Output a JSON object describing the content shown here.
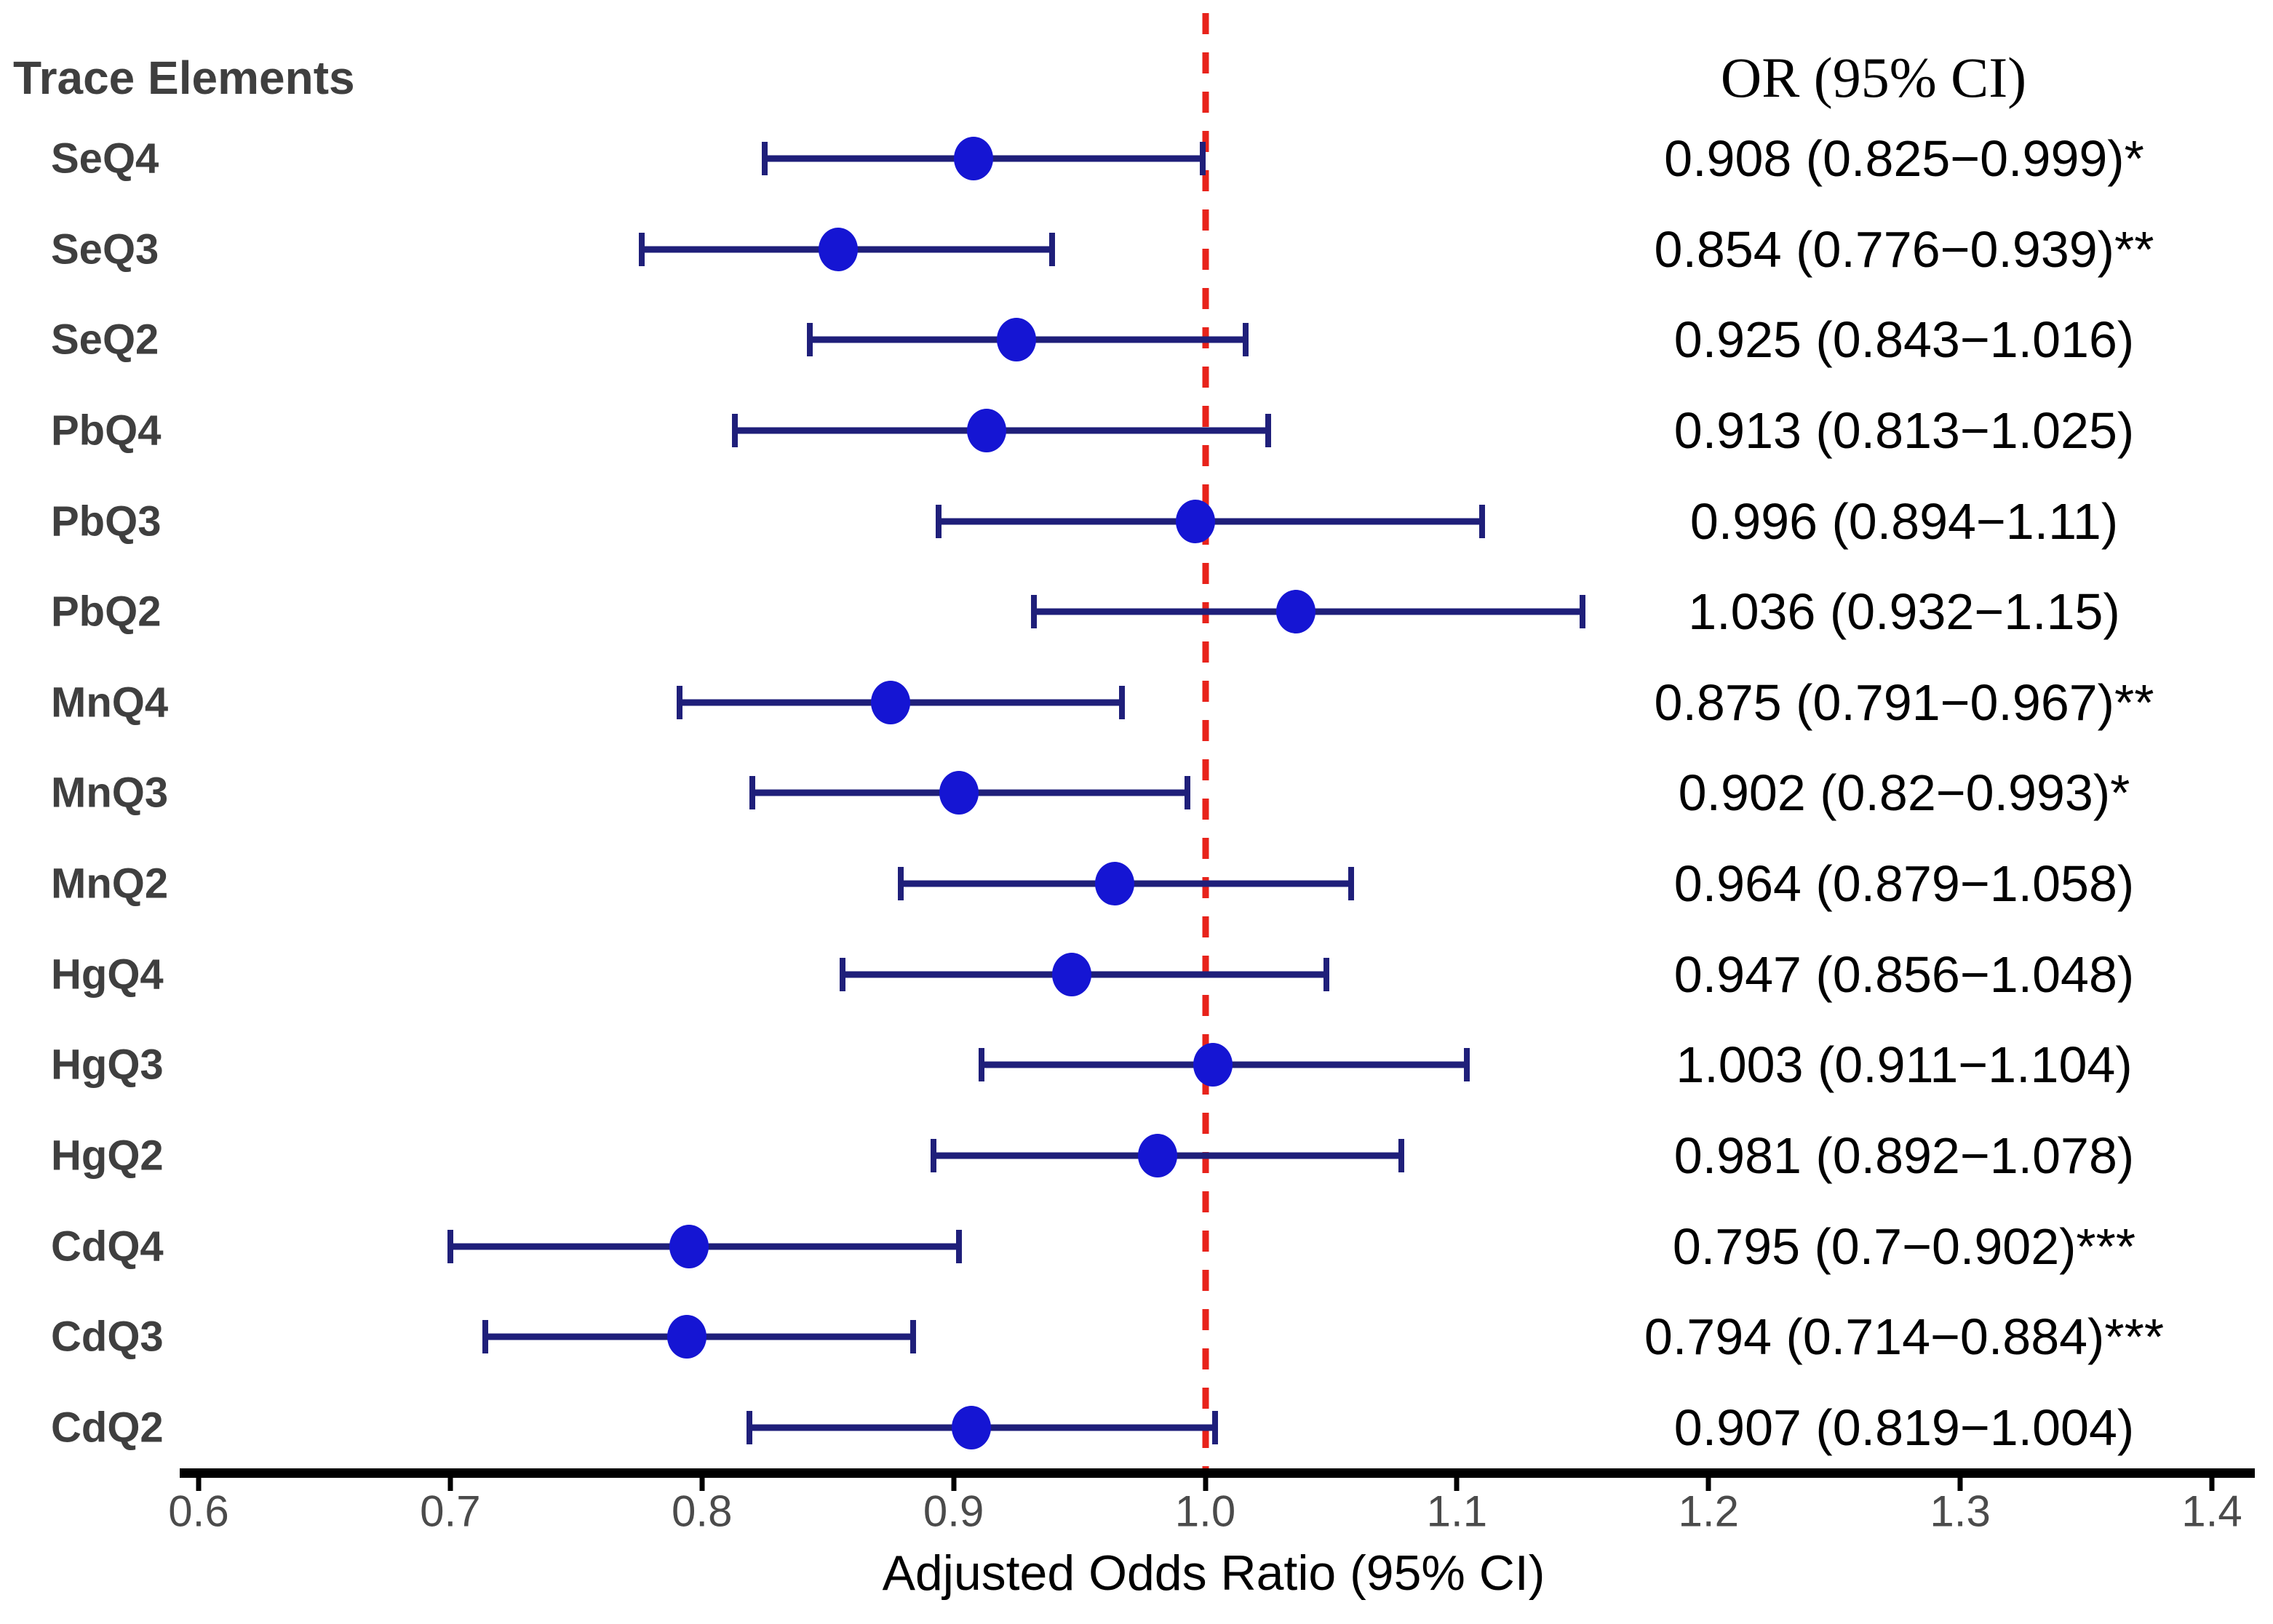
{
  "header": {
    "left": "Trace Elements",
    "right": "OR (95% CI)"
  },
  "axis": {
    "title": "Adjusted Odds Ratio (95% CI)",
    "min": 0.6,
    "max": 1.4,
    "tick_labels": [
      "0.6",
      "0.7",
      "0.8",
      "0.9",
      "1.0",
      "1.1",
      "1.2",
      "1.3",
      "1.4"
    ],
    "reference_value": 1.0
  },
  "colors": {
    "marker": "#1515d3",
    "error_bar": "#1f1f7a",
    "reference_line": "#e8231b",
    "axis_line": "#000000",
    "row_label": "#3f3f3f",
    "tick_label": "#4b4b4b",
    "value_text": "#000000"
  },
  "chart_data": {
    "type": "scatter",
    "subtype": "forest-plot",
    "xlabel": "Adjusted Odds Ratio (95% CI)",
    "ylabel": "",
    "xlim": [
      0.6,
      1.4
    ],
    "x_ticks": [
      0.6,
      0.7,
      0.8,
      0.9,
      1.0,
      1.1,
      1.2,
      1.3,
      1.4
    ],
    "reference_line_x": 1.0,
    "legend": null,
    "grid": false,
    "rows": [
      {
        "label": "SeQ4",
        "or": 0.908,
        "ci_low": 0.825,
        "ci_high": 0.999,
        "display": "0.908 (0.825−0.999)*",
        "significance": "*"
      },
      {
        "label": "SeQ3",
        "or": 0.854,
        "ci_low": 0.776,
        "ci_high": 0.939,
        "display": "0.854 (0.776−0.939)**",
        "significance": "**"
      },
      {
        "label": "SeQ2",
        "or": 0.925,
        "ci_low": 0.843,
        "ci_high": 1.016,
        "display": "0.925 (0.843−1.016)",
        "significance": ""
      },
      {
        "label": "PbQ4",
        "or": 0.913,
        "ci_low": 0.813,
        "ci_high": 1.025,
        "display": "0.913 (0.813−1.025)",
        "significance": ""
      },
      {
        "label": "PbQ3",
        "or": 0.996,
        "ci_low": 0.894,
        "ci_high": 1.11,
        "display": "0.996 (0.894−1.11)",
        "significance": ""
      },
      {
        "label": "PbQ2",
        "or": 1.036,
        "ci_low": 0.932,
        "ci_high": 1.15,
        "display": "1.036 (0.932−1.15)",
        "significance": ""
      },
      {
        "label": "MnQ4",
        "or": 0.875,
        "ci_low": 0.791,
        "ci_high": 0.967,
        "display": "0.875 (0.791−0.967)**",
        "significance": "**"
      },
      {
        "label": "MnQ3",
        "or": 0.902,
        "ci_low": 0.82,
        "ci_high": 0.993,
        "display": "0.902 (0.82−0.993)*",
        "significance": "*"
      },
      {
        "label": "MnQ2",
        "or": 0.964,
        "ci_low": 0.879,
        "ci_high": 1.058,
        "display": "0.964 (0.879−1.058)",
        "significance": ""
      },
      {
        "label": "HgQ4",
        "or": 0.947,
        "ci_low": 0.856,
        "ci_high": 1.048,
        "display": "0.947 (0.856−1.048)",
        "significance": ""
      },
      {
        "label": "HgQ3",
        "or": 1.003,
        "ci_low": 0.911,
        "ci_high": 1.104,
        "display": "1.003 (0.911−1.104)",
        "significance": ""
      },
      {
        "label": "HgQ2",
        "or": 0.981,
        "ci_low": 0.892,
        "ci_high": 1.078,
        "display": "0.981 (0.892−1.078)",
        "significance": ""
      },
      {
        "label": "CdQ4",
        "or": 0.795,
        "ci_low": 0.7,
        "ci_high": 0.902,
        "display": "0.795 (0.7−0.902)***",
        "significance": "***"
      },
      {
        "label": "CdQ3",
        "or": 0.794,
        "ci_low": 0.714,
        "ci_high": 0.884,
        "display": "0.794 (0.714−0.884)***",
        "significance": "***"
      },
      {
        "label": "CdQ2",
        "or": 0.907,
        "ci_low": 0.819,
        "ci_high": 1.004,
        "display": "0.907 (0.819−1.004)",
        "significance": ""
      }
    ]
  }
}
